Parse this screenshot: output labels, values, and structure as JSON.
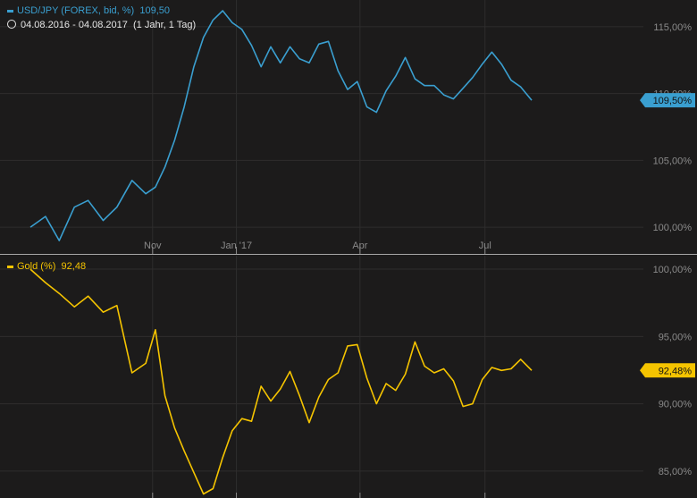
{
  "header": {
    "series1": "USD/JPY (FOREX, bid, %)",
    "series1_value": "109,50",
    "range": "04.08.2016 - 04.08.2017",
    "range_detail": "(1 Jahr, 1 Tag)",
    "series2": "Gold (%)",
    "series2_value": "92,48"
  },
  "colors": {
    "usdjpy": "#3a9fd0",
    "gold": "#f5c400",
    "background": "#1c1b1b",
    "grid": "#2e2d2d"
  },
  "chart_data": [
    {
      "type": "line",
      "series": [
        {
          "name": "USD/JPY (FOREX, bid, %)",
          "last_label": "109,50%"
        }
      ],
      "x_ticks": [
        "Nov",
        "Jan '17",
        "Apr",
        "Jul"
      ],
      "y_ticks": [
        "100,00%",
        "105,00%",
        "110,00%",
        "115,00%"
      ],
      "ylim": [
        98,
        117
      ],
      "grid": true,
      "x": [
        "2016-08-04",
        "2016-08-15",
        "2016-08-25",
        "2016-09-05",
        "2016-09-15",
        "2016-09-26",
        "2016-10-06",
        "2016-10-17",
        "2016-10-27",
        "2016-11-03",
        "2016-11-10",
        "2016-11-17",
        "2016-11-24",
        "2016-12-01",
        "2016-12-08",
        "2016-12-15",
        "2016-12-22",
        "2016-12-29",
        "2017-01-05",
        "2017-01-12",
        "2017-01-19",
        "2017-01-26",
        "2017-02-02",
        "2017-02-09",
        "2017-02-16",
        "2017-02-23",
        "2017-03-02",
        "2017-03-09",
        "2017-03-16",
        "2017-03-23",
        "2017-03-30",
        "2017-04-06",
        "2017-04-13",
        "2017-04-20",
        "2017-04-27",
        "2017-05-04",
        "2017-05-11",
        "2017-05-18",
        "2017-05-25",
        "2017-06-01",
        "2017-06-08",
        "2017-06-15",
        "2017-06-22",
        "2017-06-29",
        "2017-07-06",
        "2017-07-13",
        "2017-07-20",
        "2017-07-27",
        "2017-08-04"
      ],
      "values": [
        100.0,
        100.8,
        99.0,
        101.5,
        102.0,
        100.5,
        101.5,
        103.5,
        102.5,
        103.0,
        104.5,
        106.5,
        109.0,
        112.0,
        114.2,
        115.5,
        116.2,
        115.3,
        114.8,
        113.6,
        112.0,
        113.5,
        112.3,
        113.5,
        112.6,
        112.3,
        113.7,
        113.9,
        111.7,
        110.3,
        110.9,
        109.0,
        108.6,
        110.2,
        111.3,
        112.7,
        111.1,
        110.6,
        110.6,
        109.9,
        109.6,
        110.4,
        111.2,
        112.2,
        113.1,
        112.2,
        111.0,
        110.5,
        109.5
      ]
    },
    {
      "type": "line",
      "series": [
        {
          "name": "Gold (%)",
          "last_label": "92,48%"
        }
      ],
      "x_ticks": [
        "Nov",
        "Jan '17",
        "Apr",
        "Jul"
      ],
      "y_ticks": [
        "85,00%",
        "90,00%",
        "95,00%",
        "100,00%"
      ],
      "ylim": [
        83,
        101
      ],
      "grid": true,
      "x": [
        "2016-08-04",
        "2016-08-15",
        "2016-08-25",
        "2016-09-05",
        "2016-09-15",
        "2016-09-26",
        "2016-10-06",
        "2016-10-17",
        "2016-10-27",
        "2016-11-03",
        "2016-11-10",
        "2016-11-17",
        "2016-11-24",
        "2016-12-01",
        "2016-12-08",
        "2016-12-15",
        "2016-12-22",
        "2016-12-29",
        "2017-01-05",
        "2017-01-12",
        "2017-01-19",
        "2017-01-26",
        "2017-02-02",
        "2017-02-09",
        "2017-02-16",
        "2017-02-23",
        "2017-03-02",
        "2017-03-09",
        "2017-03-16",
        "2017-03-23",
        "2017-03-30",
        "2017-04-06",
        "2017-04-13",
        "2017-04-20",
        "2017-04-27",
        "2017-05-04",
        "2017-05-11",
        "2017-05-18",
        "2017-05-25",
        "2017-06-01",
        "2017-06-08",
        "2017-06-15",
        "2017-06-22",
        "2017-06-29",
        "2017-07-06",
        "2017-07-13",
        "2017-07-20",
        "2017-07-27",
        "2017-08-04"
      ],
      "values": [
        100.0,
        99.0,
        98.2,
        97.2,
        98.0,
        96.8,
        97.3,
        92.3,
        93.0,
        95.5,
        90.6,
        88.2,
        86.5,
        84.9,
        83.3,
        83.7,
        86.0,
        88.0,
        88.9,
        88.7,
        91.3,
        90.2,
        91.1,
        92.4,
        90.6,
        88.6,
        90.5,
        91.8,
        92.3,
        94.3,
        94.4,
        91.9,
        90.0,
        91.5,
        91.0,
        92.2,
        94.6,
        92.8,
        92.3,
        92.6,
        91.7,
        89.8,
        90.0,
        91.8,
        92.7,
        92.48,
        92.6,
        93.3,
        92.48
      ]
    }
  ]
}
